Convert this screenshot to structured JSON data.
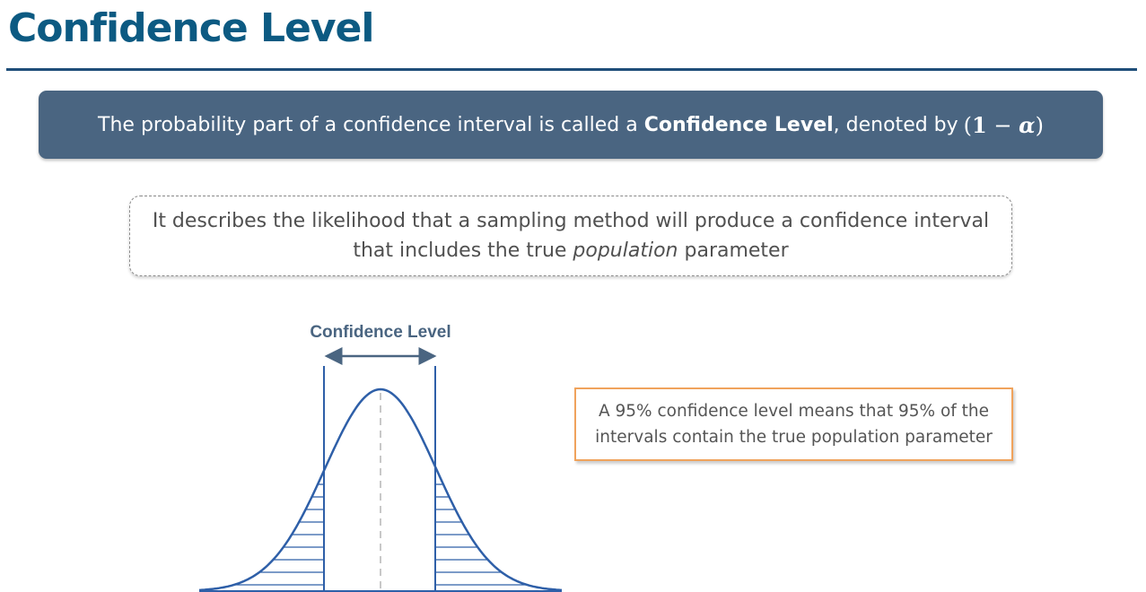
{
  "title": "Confidence Level",
  "banner": {
    "text_before": "The probability part of a confidence interval is called a ",
    "term": "Confidence Level",
    "text_after": ", denoted by",
    "formula_open": "(",
    "formula_one": "1",
    "formula_minus": " − ",
    "formula_alpha": "α",
    "formula_close": ")"
  },
  "description": {
    "line1": "It describes the likelihood that a sampling method will produce a confidence interval",
    "line2_before": "that includes the true ",
    "line2_italic": "population",
    "line2_after": " parameter"
  },
  "diagram": {
    "label": "Confidence Level",
    "curve_color": "#2e5fa8",
    "arrow_color": "#4a6581",
    "bound_color": "#2e5fa8",
    "center_line_color": "#c8c8c8"
  },
  "callout": {
    "line1": "A 95% confidence level means that 95% of the",
    "line2": "intervals contain the true population parameter",
    "border_color": "#f0a35c"
  }
}
